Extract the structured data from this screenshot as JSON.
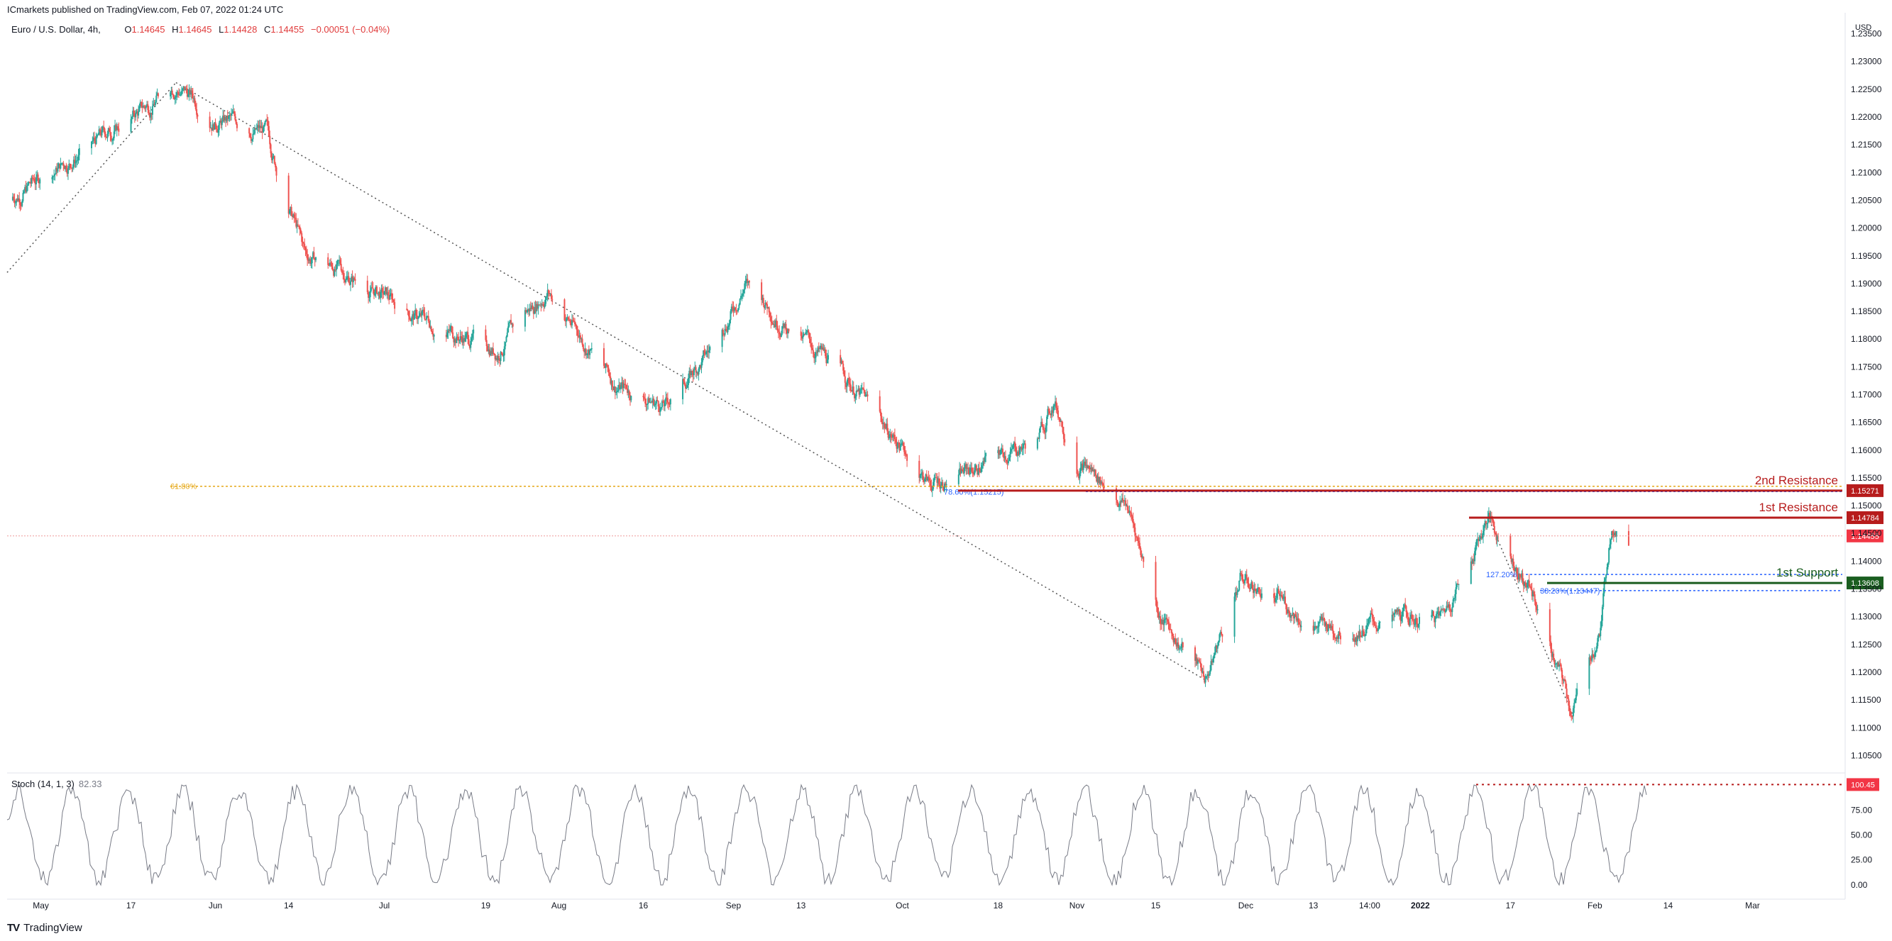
{
  "publish_line": "ICmarkets published on TradingView.com, Feb 07, 2022 01:24 UTC",
  "legend": {
    "symbol": "Euro / U.S. Dollar, 4h,",
    "o_label": "O",
    "o_value": "1.14645",
    "h_label": "H",
    "h_value": "1.14645",
    "l_label": "L",
    "l_value": "1.14428",
    "c_label": "C",
    "c_value": "1.14455",
    "change": "−0.00051 (−0.04%)"
  },
  "stoch_legend": {
    "label": "Stoch (14, 1, 3)",
    "value": "82.33"
  },
  "footer": {
    "logo": "TV",
    "brand": "TradingView"
  },
  "colors": {
    "up": "#26a69a",
    "down": "#ef5350",
    "resistance": "#b71c1c",
    "support": "#1b5e20",
    "fib": "#e6a817",
    "fib_blue": "#2962ff",
    "price_label": "#f23645",
    "stoch": "#787b86"
  },
  "chart_data": {
    "type": "candlestick",
    "title": "Euro / U.S. Dollar, 4h",
    "y_axis_unit": "USD",
    "ylim": [
      1.1025,
      1.2375
    ],
    "y_ticks": [
      "1.23500",
      "1.23000",
      "1.22500",
      "1.22000",
      "1.21500",
      "1.21000",
      "1.20500",
      "1.20000",
      "1.19500",
      "1.19000",
      "1.18500",
      "1.18000",
      "1.17500",
      "1.17000",
      "1.16500",
      "1.16000",
      "1.15500",
      "1.15000",
      "1.14500",
      "1.14000",
      "1.13500",
      "1.13000",
      "1.12500",
      "1.12000",
      "1.11500",
      "1.11000",
      "1.10500"
    ],
    "x_ticks": [
      "May",
      "17",
      "Jun",
      "14",
      "Jul",
      "19",
      "Aug",
      "16",
      "Sep",
      "13",
      "Oct",
      "18",
      "Nov",
      "15",
      "Dec",
      "13",
      "14:00",
      "2022",
      "17",
      "Feb",
      "14",
      "Mar"
    ],
    "price_path_anchors": [
      {
        "date": "Apr 25",
        "price": 1.205
      },
      {
        "date": "May 10",
        "price": 1.215
      },
      {
        "date": "May 20",
        "price": 1.222
      },
      {
        "date": "May 25",
        "price": 1.226
      },
      {
        "date": "Jun 1",
        "price": 1.22
      },
      {
        "date": "Jun 10",
        "price": 1.217
      },
      {
        "date": "Jun 17",
        "price": 1.195
      },
      {
        "date": "Jun 22",
        "price": 1.193
      },
      {
        "date": "Jul 7",
        "price": 1.184
      },
      {
        "date": "Jul 21",
        "price": 1.178
      },
      {
        "date": "Jul 30",
        "price": 1.189
      },
      {
        "date": "Aug 11",
        "price": 1.172
      },
      {
        "date": "Aug 20",
        "price": 1.168
      },
      {
        "date": "Aug 28",
        "price": 1.178
      },
      {
        "date": "Sep 3",
        "price": 1.19
      },
      {
        "date": "Sep 22",
        "price": 1.172
      },
      {
        "date": "Oct 6",
        "price": 1.154
      },
      {
        "date": "Oct 12",
        "price": 1.156
      },
      {
        "date": "Oct 25",
        "price": 1.162
      },
      {
        "date": "Oct 28",
        "price": 1.169
      },
      {
        "date": "Nov 1",
        "price": 1.159
      },
      {
        "date": "Nov 10",
        "price": 1.15
      },
      {
        "date": "Nov 16",
        "price": 1.13
      },
      {
        "date": "Nov 24",
        "price": 1.119
      },
      {
        "date": "Nov 30",
        "price": 1.137
      },
      {
        "date": "Dec 15",
        "price": 1.128
      },
      {
        "date": "Jan 5",
        "price": 1.13
      },
      {
        "date": "Jan 13",
        "price": 1.148
      },
      {
        "date": "Jan 21",
        "price": 1.134
      },
      {
        "date": "Jan 28",
        "price": 1.1125
      },
      {
        "date": "Feb 2",
        "price": 1.128
      },
      {
        "date": "Feb 4",
        "price": 1.148
      },
      {
        "date": "Feb 7",
        "price": 1.14455
      }
    ],
    "levels": [
      {
        "name": "2nd Resistance",
        "price": 1.15271,
        "label": "1.15271",
        "color": "#b71c1c"
      },
      {
        "name": "1st Resistance",
        "price": 1.14784,
        "label": "1.14784",
        "color": "#b71c1c"
      },
      {
        "name": "1st Support",
        "price": 1.13608,
        "label": "1.13608",
        "color": "#1b5e20"
      }
    ],
    "current_price": {
      "price": 1.14455,
      "label": "1.14455"
    },
    "fib_annotations": [
      {
        "text": "61.80%",
        "price": 1.1535,
        "color": "#e6a817"
      },
      {
        "text": "78.60%(1.15215)",
        "price": 1.1525,
        "color": "#2962ff"
      },
      {
        "text": "127.20%",
        "price": 1.1376,
        "color": "#2962ff"
      },
      {
        "text": "38.20%(1.13447)",
        "price": 1.1347,
        "color": "#2962ff"
      }
    ],
    "stochastic": {
      "label": "Stoch (14, 1, 3)",
      "value": 82.33,
      "y_ticks": [
        "100.00",
        "75.00",
        "50.00",
        "25.00",
        "0.00"
      ],
      "ylim": [
        -5,
        105
      ],
      "marker": {
        "value": 100.45,
        "label": "100.45"
      }
    }
  }
}
